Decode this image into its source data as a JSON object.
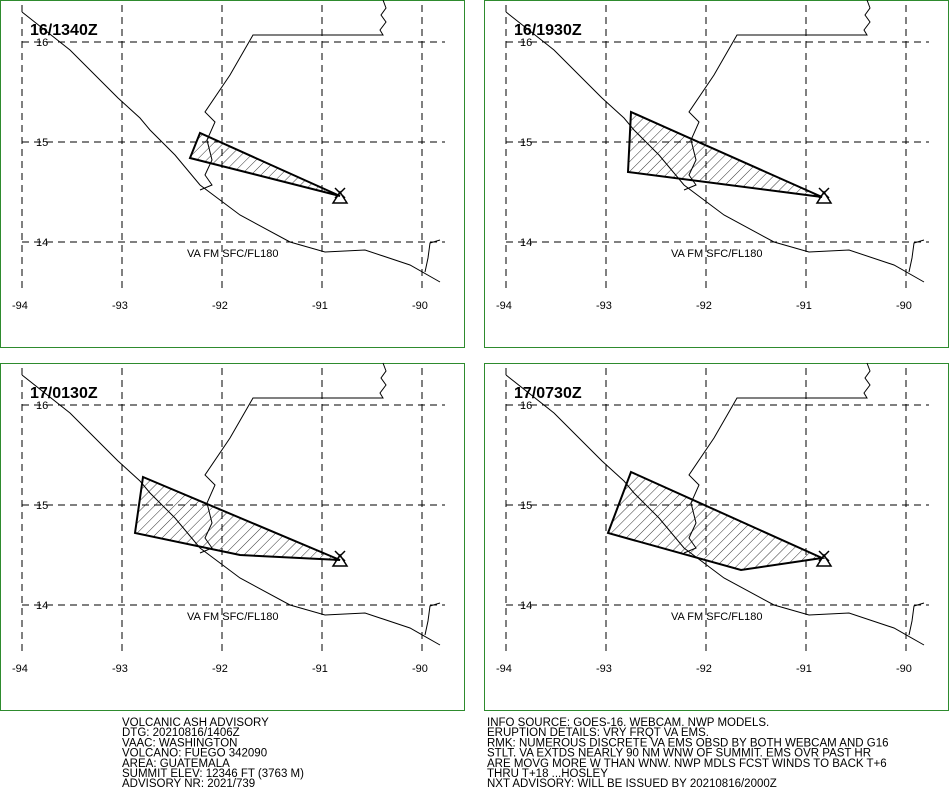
{
  "panels": [
    {
      "time": "16/1340Z",
      "layer": "VA FM SFC/FL180"
    },
    {
      "time": "16/1930Z",
      "layer": "VA FM SFC/FL180"
    },
    {
      "time": "17/0130Z",
      "layer": "VA FM SFC/FL180"
    },
    {
      "time": "17/0730Z",
      "layer": "VA FM SFC/FL180"
    }
  ],
  "map": {
    "lat_labels": [
      "16",
      "15",
      "14"
    ],
    "lon_labels": [
      "-94",
      "-93",
      "-92",
      "-91",
      "-90"
    ]
  },
  "advisory_left": [
    "VOLCANIC ASH ADVISORY",
    "DTG: 20210816/1406Z",
    "VAAC: WASHINGTON",
    "VOLCANO: FUEGO 342090",
    "AREA: GUATEMALA",
    "SUMMIT ELEV: 12346 FT (3763 M)",
    "ADVISORY NR: 2021/739"
  ],
  "advisory_right": [
    "INFO SOURCE: GOES-16. WEBCAM. NWP MODELS.",
    "ERUPTION DETAILS: VRY FRQT VA EMS.",
    "RMK: NUMEROUS DISCRETE VA EMS OBSD BY BOTH WEBCAM AND G16",
    "STLT. VA EXTDS NEARLY 90 NM WNW OF SUMMIT. EMS OVR PAST HR",
    "ARE MOVG MORE W THAN WNW. NWP MDLS FCST WINDS TO BACK T+6",
    "THRU T+18 ...HOSLEY",
    "NXT ADVISORY: WILL BE ISSUED BY 20210816/2000Z"
  ]
}
